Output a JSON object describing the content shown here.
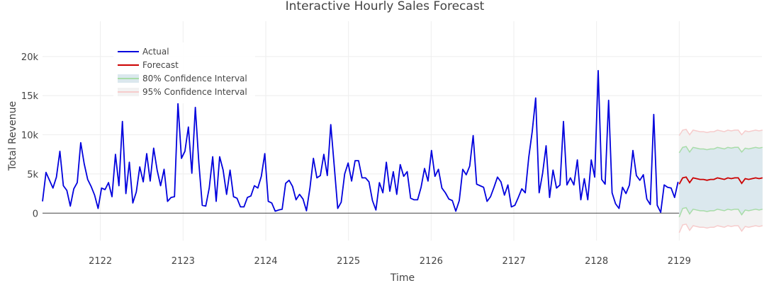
{
  "chart_data": {
    "type": "line",
    "title": "Interactive Hourly Sales Forecast",
    "xlabel": "Time",
    "ylabel": "Total Revenue",
    "x_unit": "day",
    "xlim": [
      2121.3,
      2130.0
    ],
    "ylim": [
      -3500,
      24500
    ],
    "x_ticks": [
      2122,
      2123,
      2124,
      2125,
      2126,
      2127,
      2128,
      2129
    ],
    "y_ticks": [
      0,
      5000,
      10000,
      15000,
      20000
    ],
    "y_tick_labels": [
      "0",
      "5k",
      "10k",
      "15k",
      "20k"
    ],
    "grid": true,
    "legend_position": "top-left",
    "legend": [
      "Actual",
      "Forecast",
      "80% Confidence Interval",
      "95% Confidence Interval"
    ],
    "colors": {
      "actual": "#0000dd",
      "forecast": "#cc0000",
      "ci80_fill": "#dbe8ee",
      "ci80_line": "#a8dca8",
      "ci95_fill": "#f2f2f2",
      "ci95_line": "#f6cccc",
      "grid": "#eeeeee",
      "zero_line": "#444444"
    },
    "series": [
      {
        "name": "Actual",
        "x_start": 2121.3,
        "x_step": 0.042,
        "values": [
          1500,
          5200,
          4200,
          3200,
          4600,
          7900,
          3500,
          2900,
          900,
          3100,
          3900,
          9000,
          6300,
          4300,
          3400,
          2300,
          600,
          3200,
          3000,
          3900,
          2100,
          7500,
          3500,
          11700,
          2500,
          6500,
          1300,
          2700,
          5900,
          4000,
          7600,
          4100,
          8300,
          5500,
          3500,
          5600,
          1500,
          2000,
          2100,
          14000,
          7000,
          7900,
          11000,
          5100,
          13500,
          6500,
          1000,
          900,
          3200,
          7200,
          1500,
          7200,
          5500,
          2400,
          5500,
          2100,
          1900,
          800,
          800,
          2000,
          2200,
          3500,
          3200,
          4700,
          7600,
          1500,
          1300,
          250,
          400,
          500,
          3800,
          4200,
          3400,
          1700,
          2400,
          1800,
          300,
          3200,
          7000,
          4500,
          4800,
          7500,
          4800,
          11300,
          6000,
          600,
          1400,
          5000,
          6400,
          4100,
          6700,
          6700,
          4500,
          4500,
          4000,
          1600,
          400,
          3900,
          2600,
          6500,
          2800,
          5300,
          2400,
          6200,
          4700,
          5300,
          1900,
          1700,
          1700,
          3300,
          5700,
          4100,
          8000,
          4700,
          5600,
          3200,
          2600,
          1800,
          1600,
          250,
          1600,
          5600,
          4900,
          6000,
          9900,
          3700,
          3500,
          3300,
          1500,
          2100,
          3300,
          4600,
          4000,
          2300,
          3600,
          800,
          1000,
          2000,
          3100,
          2600,
          7100,
          10400,
          14700,
          2600,
          5100,
          8600,
          2000,
          5500,
          3200,
          3600,
          11700,
          3600,
          4500,
          3600,
          6800,
          1700,
          4400,
          1700,
          6800,
          4600,
          18200,
          4300,
          3700,
          14400,
          2600,
          1200,
          600,
          3300,
          2500,
          3600,
          8000,
          4800,
          4200,
          4900,
          1800,
          1100,
          12600,
          1000,
          100,
          3600,
          3300,
          3200,
          2000,
          4000
        ]
      },
      {
        "name": "Forecast",
        "x_start": 2129.0,
        "x_step": 0.042,
        "values": [
          3700,
          4500,
          4600,
          3900,
          4500,
          4400,
          4300,
          4300,
          4200,
          4300,
          4300,
          4500,
          4400,
          4300,
          4500,
          4400,
          4500,
          4500,
          3800,
          4400,
          4300,
          4400,
          4500,
          4400,
          4500
        ]
      },
      {
        "name": "80% Confidence Interval",
        "x_start": 2129.0,
        "x_step": 0.042,
        "lower": [
          -500,
          600,
          700,
          -100,
          500,
          400,
          300,
          300,
          200,
          300,
          300,
          500,
          400,
          300,
          500,
          400,
          500,
          500,
          -200,
          400,
          300,
          400,
          500,
          400,
          500
        ],
        "upper": [
          7700,
          8400,
          8500,
          7800,
          8400,
          8300,
          8200,
          8200,
          8100,
          8200,
          8200,
          8400,
          8300,
          8200,
          8400,
          8300,
          8400,
          8400,
          7800,
          8300,
          8200,
          8300,
          8400,
          8300,
          8400
        ]
      },
      {
        "name": "95% Confidence Interval",
        "x_start": 2129.0,
        "x_step": 0.042,
        "lower": [
          -2500,
          -1500,
          -1400,
          -2200,
          -1600,
          -1700,
          -1800,
          -1800,
          -1900,
          -1800,
          -1800,
          -1600,
          -1700,
          -1800,
          -1600,
          -1700,
          -1600,
          -1600,
          -2300,
          -1700,
          -1800,
          -1700,
          -1600,
          -1700,
          -1600
        ],
        "upper": [
          9900,
          10600,
          10700,
          10000,
          10600,
          10500,
          10400,
          10400,
          10300,
          10400,
          10400,
          10600,
          10500,
          10400,
          10600,
          10500,
          10600,
          10600,
          10000,
          10500,
          10400,
          10500,
          10600,
          10500,
          10600
        ]
      }
    ]
  }
}
